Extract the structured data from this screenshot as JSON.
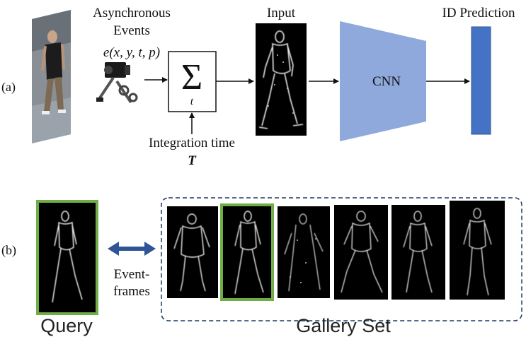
{
  "panel_a": {
    "label": "(a)",
    "events_title_line1": "Asynchronous",
    "events_title_line2": "Events",
    "event_formula": "e(x, y, t, p)",
    "sum_symbol": "Σ",
    "sum_subscript": "t",
    "integration_label": "Integration time",
    "integration_symbol": "T",
    "input_label": "Input",
    "cnn_label": "CNN",
    "id_prediction_label": "ID Prediction"
  },
  "panel_b": {
    "label": "(b)",
    "event_frames_line1": "Event-",
    "event_frames_line2": "frames",
    "query_label": "Query",
    "gallery_label": "Gallery Set",
    "gallery_count": 6,
    "gallery_match_index": 1
  },
  "colors": {
    "cnn_fill": "#8fa9dc",
    "prediction_fill": "#4472c4",
    "match_border": "#70ad47",
    "gallery_border": "#1f3864",
    "double_arrow": "#2f5597"
  }
}
